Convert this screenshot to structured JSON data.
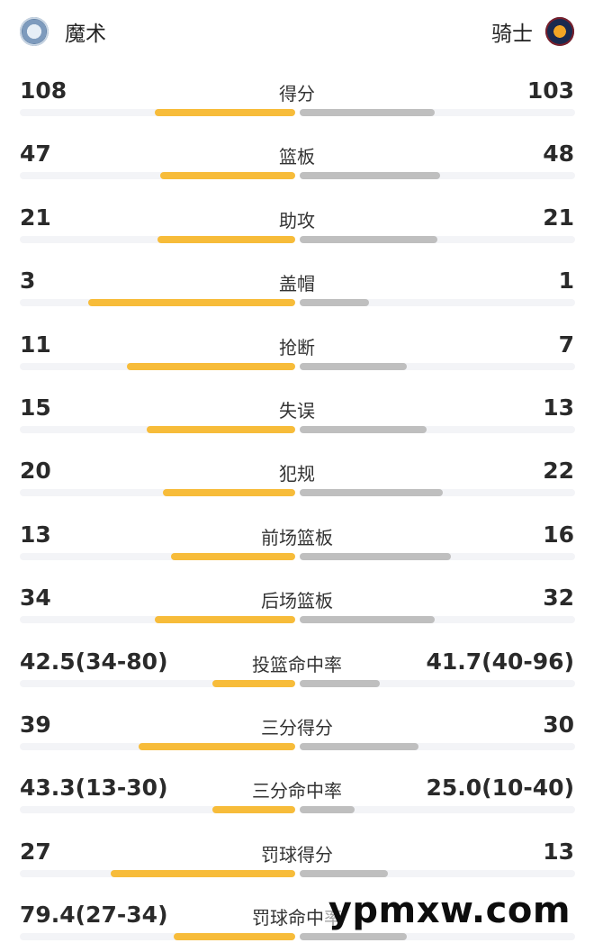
{
  "home": {
    "name": "魔术",
    "logo_icon": "orlando-magic-logo-icon",
    "bar_color": "#f7bc3a"
  },
  "away": {
    "name": "骑士",
    "logo_icon": "cleveland-cavaliers-logo-icon",
    "bar_color": "#bfbfbf"
  },
  "stats": [
    {
      "label": "得分",
      "home": "108",
      "away": "103",
      "home_fraction": 0.51,
      "away_fraction": 0.49
    },
    {
      "label": "篮板",
      "home": "47",
      "away": "48",
      "home_fraction": 0.49,
      "away_fraction": 0.51
    },
    {
      "label": "助攻",
      "home": "21",
      "away": "21",
      "home_fraction": 0.5,
      "away_fraction": 0.5
    },
    {
      "label": "盖帽",
      "home": "3",
      "away": "1",
      "home_fraction": 0.75,
      "away_fraction": 0.25
    },
    {
      "label": "抢断",
      "home": "11",
      "away": "7",
      "home_fraction": 0.61,
      "away_fraction": 0.39
    },
    {
      "label": "失误",
      "home": "15",
      "away": "13",
      "home_fraction": 0.54,
      "away_fraction": 0.46
    },
    {
      "label": "犯规",
      "home": "20",
      "away": "22",
      "home_fraction": 0.48,
      "away_fraction": 0.52
    },
    {
      "label": "前场篮板",
      "home": "13",
      "away": "16",
      "home_fraction": 0.45,
      "away_fraction": 0.55
    },
    {
      "label": "后场篮板",
      "home": "34",
      "away": "32",
      "home_fraction": 0.51,
      "away_fraction": 0.49
    },
    {
      "label": "投篮命中率",
      "home": "42.5(34-80)",
      "away": "41.7(40-96)",
      "home_fraction": 0.3,
      "away_fraction": 0.29
    },
    {
      "label": "三分得分",
      "home": "39",
      "away": "30",
      "home_fraction": 0.57,
      "away_fraction": 0.43
    },
    {
      "label": "三分命中率",
      "home": "43.3(13-30)",
      "away": "25.0(10-40)",
      "home_fraction": 0.3,
      "away_fraction": 0.2
    },
    {
      "label": "罚球得分",
      "home": "27",
      "away": "13",
      "home_fraction": 0.67,
      "away_fraction": 0.32
    },
    {
      "label": "罚球命中率",
      "home": "79.4(27-34)",
      "away": "",
      "home_fraction": 0.44,
      "away_fraction": 0.39
    }
  ],
  "watermark": "ypmxw.com"
}
